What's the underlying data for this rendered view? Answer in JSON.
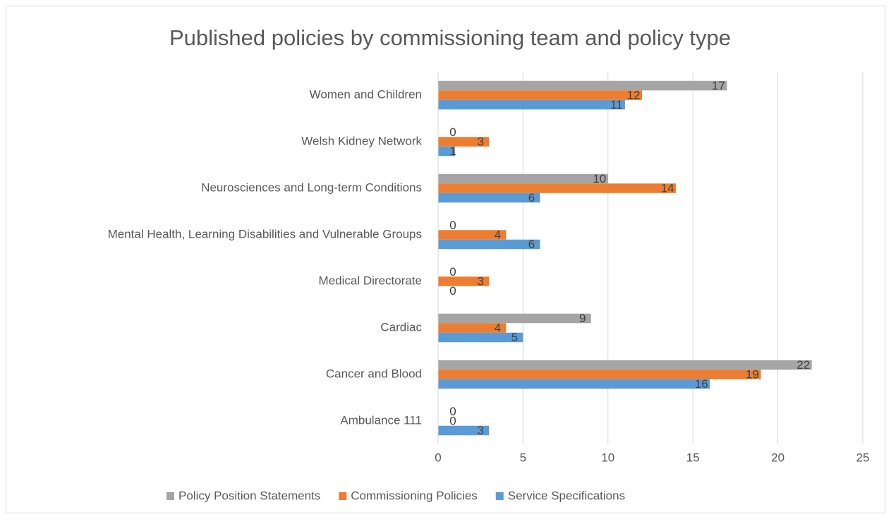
{
  "chart_data": {
    "type": "barh",
    "title": "Published policies by commissioning team and policy type",
    "categories": [
      "Ambulance 111",
      "Cancer and Blood",
      "Cardiac",
      "Medical Directorate",
      "Mental Health, Learning Disabilities and Vulnerable Groups",
      "Neurosciences and Long-term Conditions",
      "Welsh Kidney Network",
      "Women and Children"
    ],
    "series": [
      {
        "name": "Policy Position Statements",
        "color": "#a5a5a5",
        "values": [
          0,
          22,
          9,
          0,
          0,
          10,
          0,
          17
        ]
      },
      {
        "name": "Commissioning Policies",
        "color": "#ed7d31",
        "values": [
          0,
          19,
          4,
          3,
          4,
          14,
          3,
          12
        ]
      },
      {
        "name": "Service Specifications",
        "color": "#5b9bd5",
        "values": [
          3,
          16,
          5,
          0,
          6,
          6,
          1,
          11
        ]
      }
    ],
    "xlim": [
      0,
      25
    ],
    "xticks": [
      0,
      5,
      10,
      15,
      20,
      25
    ],
    "grid": true,
    "legend": "bottom"
  }
}
